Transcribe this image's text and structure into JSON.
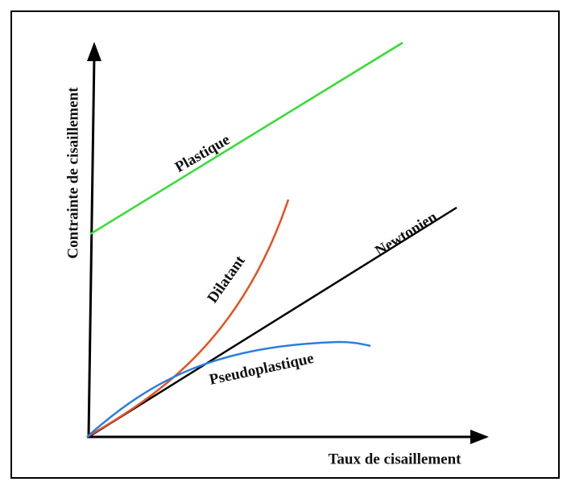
{
  "axes": {
    "y_label": "Contrainte de cisaillement",
    "x_label": "Taux de cisaillement"
  },
  "curves": [
    {
      "label": "Plastique"
    },
    {
      "label": "Dilatant"
    },
    {
      "label": "Newtonien"
    },
    {
      "label": "Pseudoplastique"
    }
  ]
}
